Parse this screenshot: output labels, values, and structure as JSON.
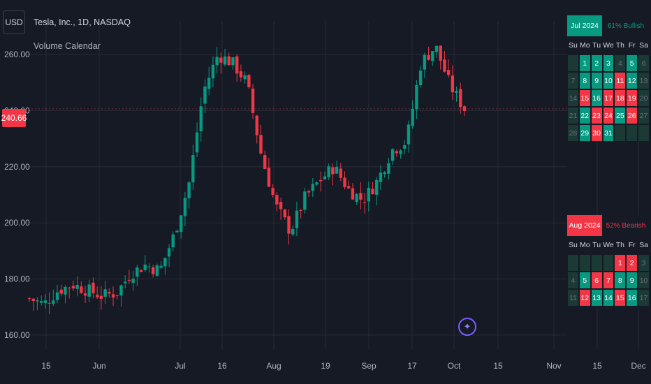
{
  "toolbar": {
    "currency": "USD"
  },
  "symbol": {
    "title": "Tesla, Inc., 1D, NASDAQ",
    "indicator": "Volume Calendar",
    "last_price": "240.66"
  },
  "colors": {
    "bull": "#089981",
    "bear": "#f23645",
    "bg": "#161a25",
    "grid": "#262a35",
    "neutral_cell": "#1b3a36"
  },
  "chart_data": {
    "type": "candlestick",
    "ylim": [
      155,
      272
    ],
    "y_ticks": [
      "160.00",
      "180.00",
      "200.00",
      "220.00",
      "240.00",
      "260.00"
    ],
    "x_ticks": [
      "15",
      "Jun",
      "Jul",
      "16",
      "Aug",
      "19",
      "Sep",
      "17",
      "Oct",
      "15",
      "Nov",
      "15",
      "Dec"
    ],
    "candles_weekly_closes": [
      173,
      171,
      176,
      178,
      176,
      174,
      175,
      182,
      185,
      183,
      196,
      214,
      247,
      260,
      257,
      250,
      224,
      206,
      197,
      209,
      215,
      220,
      212,
      208,
      215,
      226,
      229,
      257,
      263,
      249,
      240.66
    ],
    "last_price": 240.66
  },
  "calendars": [
    {
      "month": "Jul 2024",
      "pct": "61% Bullish",
      "head_color": "#089981",
      "pct_color": "#089981",
      "weekdays": [
        "Su",
        "Mo",
        "Tu",
        "We",
        "Th",
        "Fr",
        "Sa"
      ],
      "cells": [
        {
          "d": "",
          "c": "n"
        },
        {
          "d": "1",
          "c": "g"
        },
        {
          "d": "2",
          "c": "g"
        },
        {
          "d": "3",
          "c": "g"
        },
        {
          "d": "4",
          "c": "n"
        },
        {
          "d": "5",
          "c": "g"
        },
        {
          "d": "6",
          "c": "n"
        },
        {
          "d": "7",
          "c": "n"
        },
        {
          "d": "8",
          "c": "g"
        },
        {
          "d": "9",
          "c": "g"
        },
        {
          "d": "10",
          "c": "g"
        },
        {
          "d": "11",
          "c": "r"
        },
        {
          "d": "12",
          "c": "g"
        },
        {
          "d": "13",
          "c": "n"
        },
        {
          "d": "14",
          "c": "n"
        },
        {
          "d": "15",
          "c": "r"
        },
        {
          "d": "16",
          "c": "g"
        },
        {
          "d": "17",
          "c": "r"
        },
        {
          "d": "18",
          "c": "r"
        },
        {
          "d": "19",
          "c": "r"
        },
        {
          "d": "20",
          "c": "n"
        },
        {
          "d": "21",
          "c": "n"
        },
        {
          "d": "22",
          "c": "g"
        },
        {
          "d": "23",
          "c": "r"
        },
        {
          "d": "24",
          "c": "r"
        },
        {
          "d": "25",
          "c": "g"
        },
        {
          "d": "26",
          "c": "r"
        },
        {
          "d": "27",
          "c": "n"
        },
        {
          "d": "28",
          "c": "n"
        },
        {
          "d": "29",
          "c": "g"
        },
        {
          "d": "30",
          "c": "r"
        },
        {
          "d": "31",
          "c": "g"
        },
        {
          "d": "",
          "c": "n"
        },
        {
          "d": "",
          "c": "n"
        },
        {
          "d": "",
          "c": "n"
        }
      ]
    },
    {
      "month": "Aug 2024",
      "pct": "52% Bearish",
      "head_color": "#f23645",
      "pct_color": "#f23645",
      "weekdays": [
        "Su",
        "Mo",
        "Tu",
        "We",
        "Th",
        "Fr",
        "Sa"
      ],
      "cells": [
        {
          "d": "",
          "c": "n"
        },
        {
          "d": "",
          "c": "n"
        },
        {
          "d": "",
          "c": "n"
        },
        {
          "d": "",
          "c": "n"
        },
        {
          "d": "1",
          "c": "r"
        },
        {
          "d": "2",
          "c": "r"
        },
        {
          "d": "3",
          "c": "n"
        },
        {
          "d": "4",
          "c": "n"
        },
        {
          "d": "5",
          "c": "g"
        },
        {
          "d": "6",
          "c": "r"
        },
        {
          "d": "7",
          "c": "r"
        },
        {
          "d": "8",
          "c": "g"
        },
        {
          "d": "9",
          "c": "g"
        },
        {
          "d": "10",
          "c": "n"
        },
        {
          "d": "11",
          "c": "n"
        },
        {
          "d": "12",
          "c": "r"
        },
        {
          "d": "13",
          "c": "g"
        },
        {
          "d": "14",
          "c": "g"
        },
        {
          "d": "15",
          "c": "r"
        },
        {
          "d": "16",
          "c": "g"
        },
        {
          "d": "17",
          "c": "n"
        }
      ]
    }
  ]
}
